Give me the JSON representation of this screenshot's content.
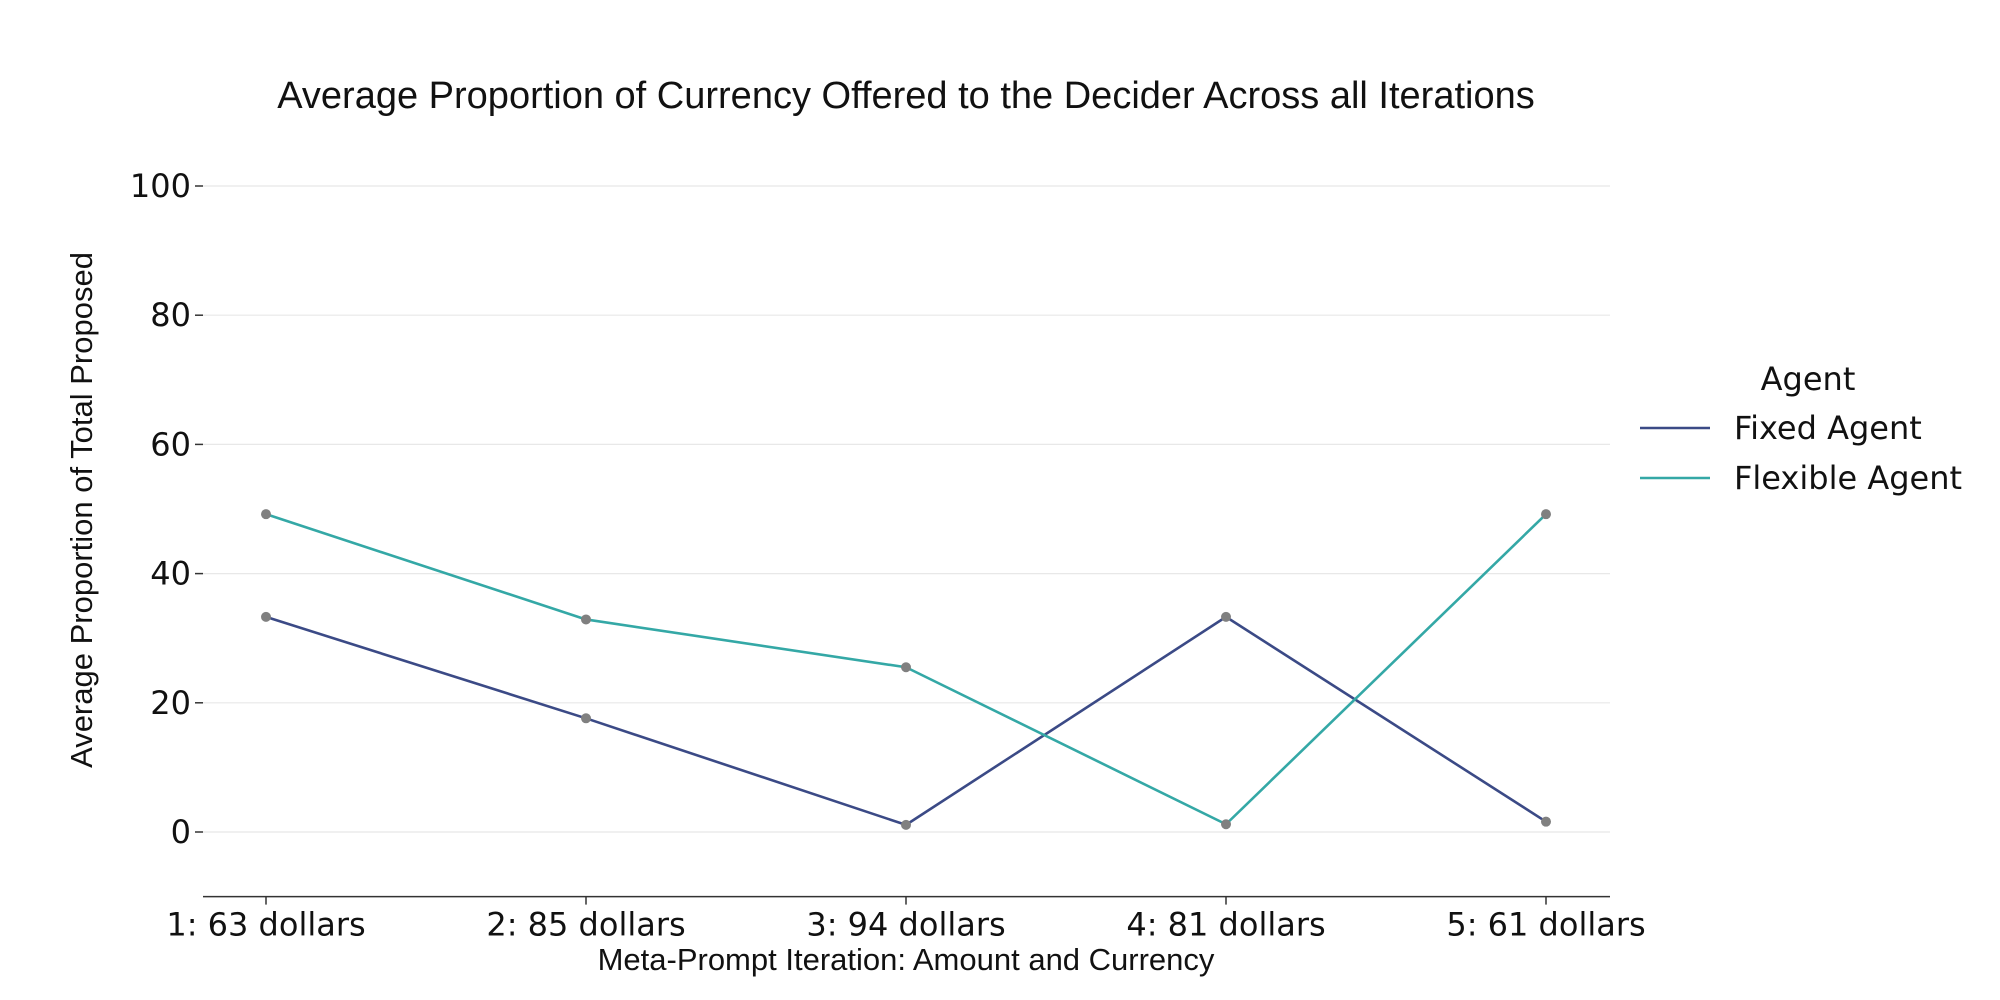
{
  "chart_data": {
    "type": "line",
    "title": "Average Proportion of Currency Offered to the Decider Across all Iterations",
    "xlabel": "Meta-Prompt Iteration: Amount and Currency",
    "ylabel": "Average Proportion of Total Proposed",
    "categories": [
      "1: 63 dollars",
      "2: 85 dollars",
      "3: 94 dollars",
      "4: 81 dollars",
      "5: 61 dollars"
    ],
    "ylim": [
      -10,
      100
    ],
    "yticks": [
      0,
      20,
      40,
      60,
      80,
      100
    ],
    "grid": "horizontal",
    "legend": {
      "title": "Agent",
      "placement": "right"
    },
    "series": [
      {
        "name": "Fixed Agent",
        "color": "#3b4a86",
        "values": [
          33.3,
          17.6,
          1.1,
          33.3,
          1.6
        ]
      },
      {
        "name": "Flexible Agent",
        "color": "#34a8a6",
        "values": [
          49.2,
          32.9,
          25.5,
          1.2,
          49.2
        ]
      }
    ],
    "marker_color": "#808080"
  }
}
